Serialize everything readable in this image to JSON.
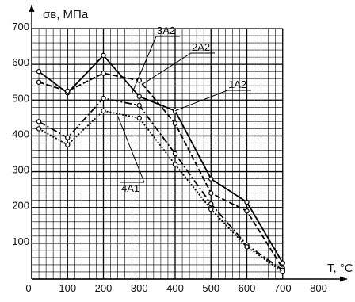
{
  "chart_data": {
    "type": "line",
    "title": "",
    "ylabel": "σв, МПа",
    "xlabel": "T, °C",
    "xlim": [
      0,
      800
    ],
    "ylim": [
      0,
      700
    ],
    "x_ticks": [
      "0",
      "100",
      "200",
      "300",
      "400",
      "500",
      "600",
      "700",
      "800"
    ],
    "y_ticks": [
      "100",
      "200",
      "300",
      "400",
      "500",
      "600",
      "700"
    ],
    "grid": true,
    "series": [
      {
        "name": "1A2",
        "style": "solid",
        "x": [
          20,
          100,
          200,
          300,
          400,
          500,
          600,
          700
        ],
        "y": [
          580,
          520,
          625,
          510,
          470,
          280,
          215,
          45
        ]
      },
      {
        "name": "2A2",
        "style": "dashed",
        "x": [
          20,
          100,
          200,
          300,
          400,
          500,
          600,
          700
        ],
        "y": [
          550,
          525,
          575,
          555,
          435,
          240,
          190,
          30
        ]
      },
      {
        "name": "3A2",
        "style": "dash-dot",
        "x": [
          20,
          100,
          200,
          300,
          400,
          500,
          600,
          700
        ],
        "y": [
          440,
          395,
          505,
          485,
          350,
          210,
          95,
          25
        ]
      },
      {
        "name": "4A1",
        "style": "dotted",
        "x": [
          20,
          100,
          200,
          300,
          400,
          500,
          600,
          700
        ],
        "y": [
          420,
          375,
          470,
          450,
          320,
          195,
          90,
          20
        ]
      }
    ]
  }
}
